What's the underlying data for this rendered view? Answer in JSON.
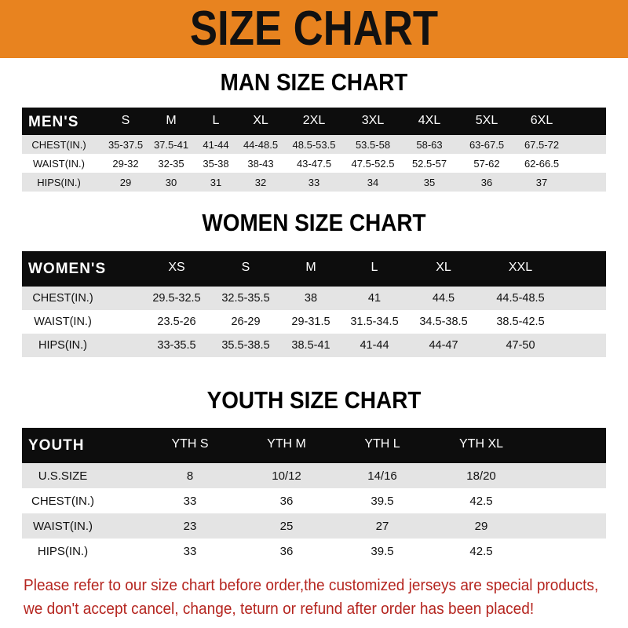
{
  "banner": {
    "title": "SIZE CHART",
    "color": "#e8831f"
  },
  "men": {
    "title": "MAN SIZE CHART",
    "header": [
      "MEN'S",
      "S",
      "M",
      "L",
      "XL",
      "2XL",
      "3XL",
      "4XL",
      "5XL",
      "6XL"
    ],
    "rows": [
      [
        "CHEST(IN.)",
        "35-37.5",
        "37.5-41",
        "41-44",
        "44-48.5",
        "48.5-53.5",
        "53.5-58",
        "58-63",
        "63-67.5",
        "67.5-72"
      ],
      [
        "WAIST(IN.)",
        "29-32",
        "32-35",
        "35-38",
        "38-43",
        "43-47.5",
        "47.5-52.5",
        "52.5-57",
        "57-62",
        "62-66.5"
      ],
      [
        "HIPS(IN.)",
        "29",
        "30",
        "31",
        "32",
        "33",
        "34",
        "35",
        "36",
        "37"
      ]
    ]
  },
  "women": {
    "title": "WOMEN SIZE CHART",
    "header": [
      "WOMEN'S",
      "XS",
      "S",
      "M",
      "L",
      "XL",
      "XXL"
    ],
    "rows": [
      [
        "CHEST(IN.)",
        "29.5-32.5",
        "32.5-35.5",
        "38",
        "41",
        "44.5",
        "44.5-48.5"
      ],
      [
        "WAIST(IN.)",
        "23.5-26",
        "26-29",
        "29-31.5",
        "31.5-34.5",
        "34.5-38.5",
        "38.5-42.5"
      ],
      [
        "HIPS(IN.)",
        "33-35.5",
        "35.5-38.5",
        "38.5-41",
        "41-44",
        "44-47",
        "47-50"
      ]
    ]
  },
  "youth": {
    "title": "YOUTH SIZE CHART",
    "header": [
      "YOUTH",
      "YTH S",
      "YTH M",
      "YTH L",
      "YTH XL"
    ],
    "rows": [
      [
        "U.S.SIZE",
        "8",
        "10/12",
        "14/16",
        "18/20"
      ],
      [
        "CHEST(IN.)",
        "33",
        "36",
        "39.5",
        "42.5"
      ],
      [
        "WAIST(IN.)",
        "23",
        "25",
        "27",
        "29"
      ],
      [
        "HIPS(IN.)",
        "33",
        "36",
        "39.5",
        "42.5"
      ]
    ]
  },
  "notice": {
    "line1": "Please refer to our size chart before order,the customized jerseys are special products,",
    "line2": "we don't accept cancel, change, teturn or refund after order has been placed!",
    "color": "#b5251f"
  }
}
